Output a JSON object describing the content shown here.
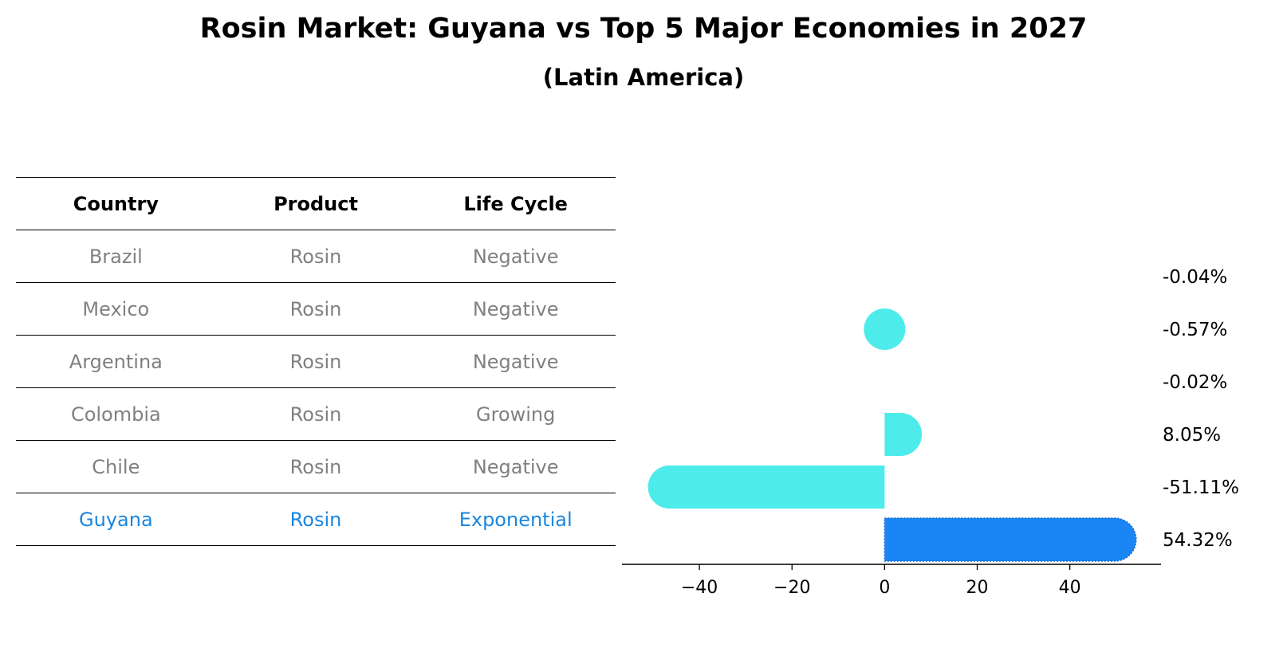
{
  "header": {
    "title": "Rosin Market: Guyana vs Top 5 Major Economies in 2027",
    "subtitle": "(Latin America)"
  },
  "table": {
    "columns": [
      "Country",
      "Product",
      "Life Cycle"
    ],
    "rows": [
      {
        "country": "Brazil",
        "product": "Rosin",
        "life_cycle": "Negative"
      },
      {
        "country": "Mexico",
        "product": "Rosin",
        "life_cycle": "Negative"
      },
      {
        "country": "Argentina",
        "product": "Rosin",
        "life_cycle": "Negative"
      },
      {
        "country": "Colombia",
        "product": "Rosin",
        "life_cycle": "Growing"
      },
      {
        "country": "Chile",
        "product": "Rosin",
        "life_cycle": "Negative"
      },
      {
        "country": "Guyana",
        "product": "Rosin",
        "life_cycle": "Exponential"
      }
    ]
  },
  "chart_data": {
    "type": "bar",
    "orientation": "horizontal",
    "categories": [
      "Brazil",
      "Mexico",
      "Argentina",
      "Colombia",
      "Chile",
      "Guyana"
    ],
    "values": [
      -0.04,
      -0.57,
      -0.02,
      8.05,
      -51.11,
      54.32
    ],
    "value_labels": [
      "-0.04%",
      "-0.57%",
      "-0.02%",
      "8.05%",
      "-51.11%",
      "54.32%"
    ],
    "xlim": [
      -55,
      59
    ],
    "xticks": [
      -40,
      -20,
      0,
      20,
      40
    ],
    "xtick_labels": [
      "−40",
      "−20",
      "0",
      "20",
      "40"
    ],
    "colors": {
      "default": "#4deceb",
      "highlight": "#1a86f5",
      "highlight_text": "#1a86df"
    },
    "highlight_category": "Guyana",
    "grid": false
  }
}
